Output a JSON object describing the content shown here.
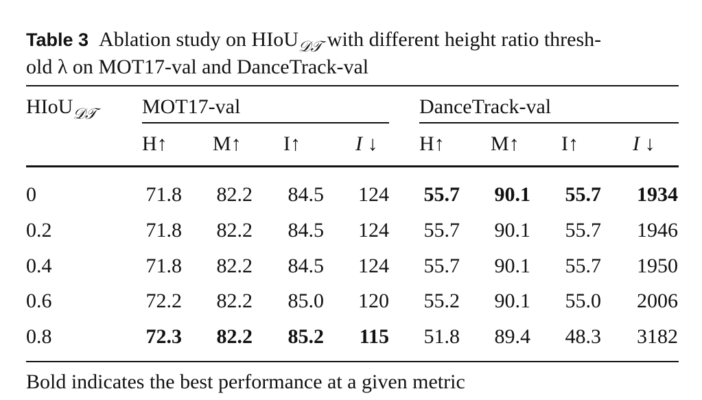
{
  "caption": {
    "label": "Table 3",
    "text_1": "Ablation study on HIoU",
    "subscript": "𝒟𝒯",
    "text_2": "with different height ratio thresh-",
    "text_3": "old λ on MOT17-val and DanceTrack-val"
  },
  "table": {
    "corner": {
      "text": "HIoU",
      "subscript": "𝒟𝒯"
    },
    "groups": [
      "MOT17-val",
      "DanceTrack-val"
    ],
    "columns": [
      "H↑",
      "M↑",
      "I↑",
      "I ↓",
      "H↑",
      "M↑",
      "I↑",
      "I ↓"
    ],
    "rows": [
      [
        "0",
        "71.8",
        "82.2",
        "84.5",
        "124",
        "55.7",
        "90.1",
        "55.7",
        "1934"
      ],
      [
        "0.2",
        "71.8",
        "82.2",
        "84.5",
        "124",
        "55.7",
        "90.1",
        "55.7",
        "1946"
      ],
      [
        "0.4",
        "71.8",
        "82.2",
        "84.5",
        "124",
        "55.7",
        "90.1",
        "55.7",
        "1950"
      ],
      [
        "0.6",
        "72.2",
        "82.2",
        "85.0",
        "120",
        "55.2",
        "90.1",
        "55.0",
        "2006"
      ],
      [
        "0.8",
        "72.3",
        "82.2",
        "85.2",
        "115",
        "51.8",
        "89.4",
        "48.3",
        "3182"
      ]
    ],
    "bold_cells": [
      [
        0,
        5
      ],
      [
        0,
        6
      ],
      [
        0,
        7
      ],
      [
        0,
        8
      ],
      [
        4,
        1
      ],
      [
        4,
        2
      ],
      [
        4,
        3
      ],
      [
        4,
        4
      ]
    ]
  },
  "footnote": "Bold indicates the best performance at a given metric"
}
